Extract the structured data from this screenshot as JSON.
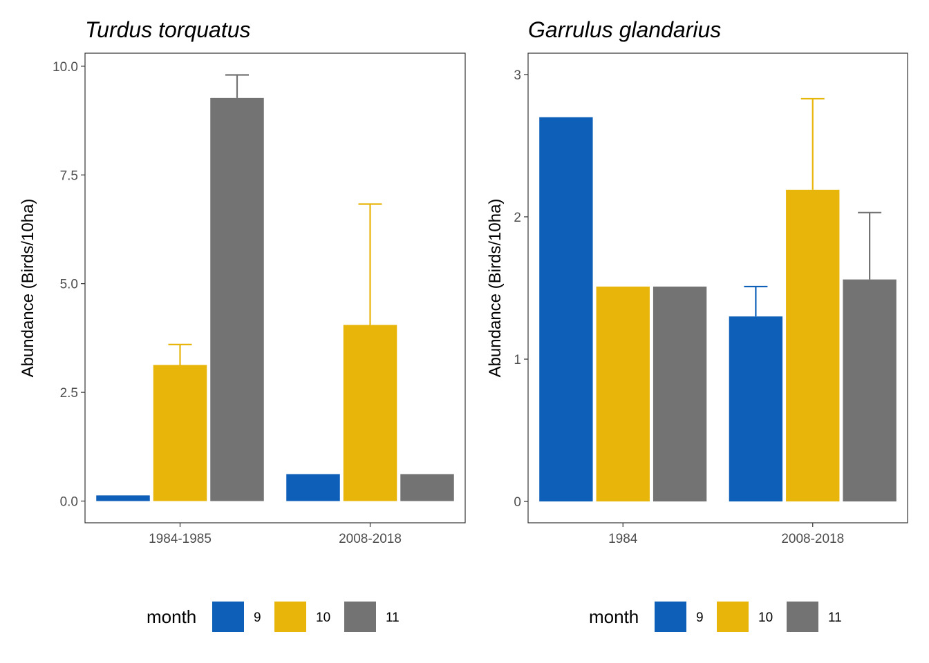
{
  "chart_data": [
    {
      "type": "bar",
      "title": "Turdus torquatus",
      "xlabel": "",
      "ylabel": "Abundance (Birds/10ha)",
      "categories": [
        "1984-1985",
        "2008-2018"
      ],
      "ylim": [
        -0.5,
        10.3
      ],
      "yticks": [
        "0.0",
        "2.5",
        "5.0",
        "7.5",
        "10.0"
      ],
      "ytick_values": [
        0,
        2.5,
        5,
        7.5,
        10
      ],
      "series": [
        {
          "name": "9",
          "color": "#0d5fb8",
          "values": [
            0.13,
            0.62
          ],
          "error_upper": [
            null,
            null
          ]
        },
        {
          "name": "10",
          "color": "#e8b50b",
          "values": [
            3.13,
            4.05
          ],
          "error_upper": [
            3.6,
            6.83
          ]
        },
        {
          "name": "11",
          "color": "#737373",
          "values": [
            9.27,
            0.62
          ],
          "error_upper": [
            9.8,
            null
          ]
        }
      ],
      "legend": {
        "title": "month",
        "position": "bottom"
      }
    },
    {
      "type": "bar",
      "title": "Garrulus glandarius",
      "xlabel": "",
      "ylabel": "Abundance (Birds/10ha)",
      "categories": [
        "1984",
        "2008-2018"
      ],
      "ylim": [
        -0.15,
        3.15
      ],
      "yticks": [
        "0",
        "1",
        "2",
        "3"
      ],
      "ytick_values": [
        0,
        1,
        2,
        3
      ],
      "series": [
        {
          "name": "9",
          "color": "#0d5fb8",
          "values": [
            2.7,
            1.3
          ],
          "error_upper": [
            null,
            1.51
          ]
        },
        {
          "name": "10",
          "color": "#e8b50b",
          "values": [
            1.51,
            2.19
          ],
          "error_upper": [
            null,
            2.83
          ]
        },
        {
          "name": "11",
          "color": "#737373",
          "values": [
            1.51,
            1.56
          ],
          "error_upper": [
            null,
            2.03
          ]
        }
      ],
      "legend": {
        "title": "month",
        "position": "bottom"
      }
    }
  ]
}
